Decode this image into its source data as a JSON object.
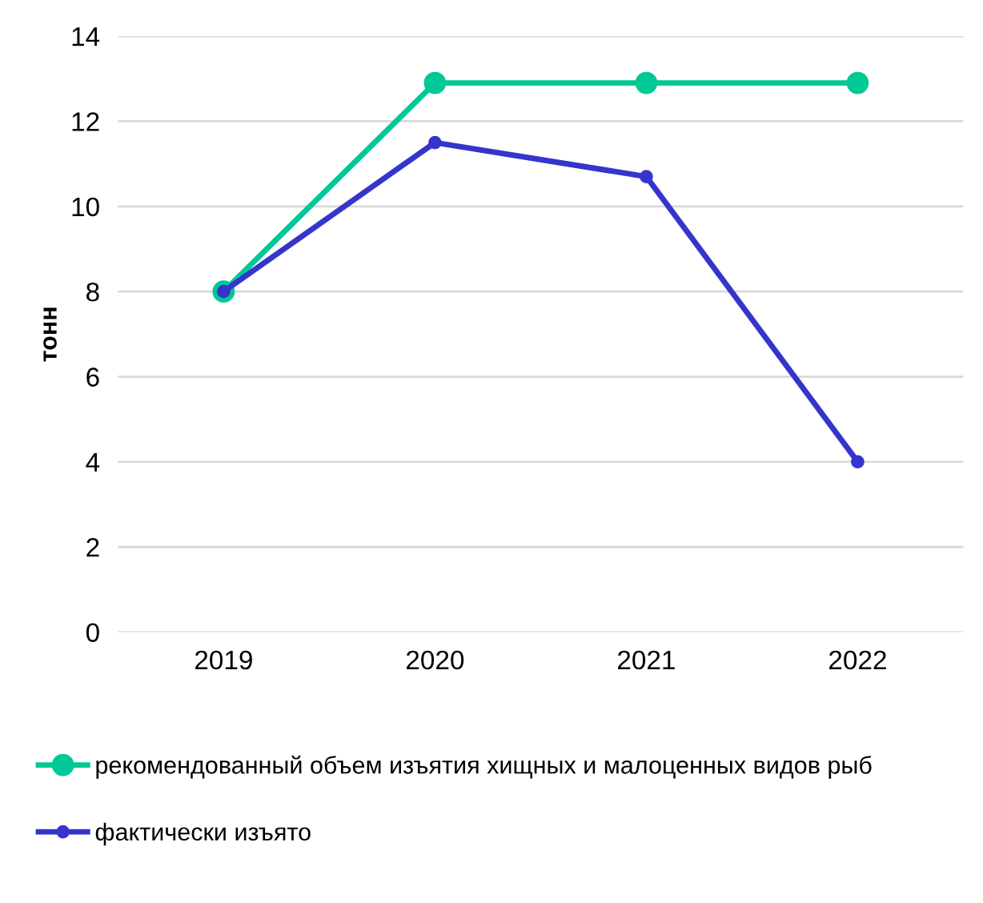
{
  "chart_data": {
    "type": "line",
    "ylabel": "тонн",
    "categories": [
      "2019",
      "2020",
      "2021",
      "2022"
    ],
    "series": [
      {
        "name": "рекомендованный объем изъятия хищных и малоценных видов рыб",
        "color": "#00c896",
        "values": [
          8.0,
          12.9,
          12.9,
          12.9
        ]
      },
      {
        "name": "фактически изъято",
        "color": "#3535cc",
        "values": [
          8.0,
          11.5,
          10.7,
          4.0
        ]
      }
    ],
    "ylim": [
      0,
      14
    ],
    "yticks": [
      0,
      2,
      4,
      6,
      8,
      10,
      12,
      14
    ],
    "grid": "y",
    "legend": "bottom",
    "marker": "circle",
    "line_style": "solid"
  }
}
